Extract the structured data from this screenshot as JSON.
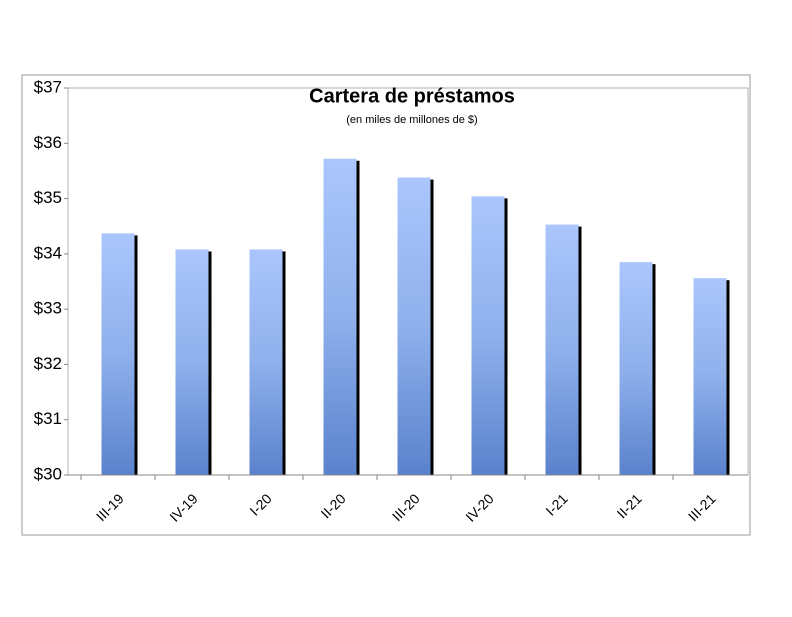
{
  "chart_data": {
    "type": "bar",
    "title": "Cartera de préstamos",
    "subtitle": "(en miles de millones  de $)",
    "categories": [
      "III-19",
      "IV-19",
      "I-20",
      "II-20",
      "III-20",
      "IV-20",
      "I-21",
      "II-21",
      "III-21"
    ],
    "values": [
      34.37,
      34.08,
      34.08,
      35.72,
      35.38,
      35.04,
      34.53,
      33.85,
      33.56
    ],
    "color": "#a8c4fa",
    "ylim": [
      30,
      37
    ],
    "yticks": [
      {
        "value": 30,
        "label": "$30"
      },
      {
        "value": 31,
        "label": "$31"
      },
      {
        "value": 32,
        "label": "$32"
      },
      {
        "value": 33,
        "label": "$33"
      },
      {
        "value": 34,
        "label": "$34"
      },
      {
        "value": 35,
        "label": "$35"
      },
      {
        "value": 36,
        "label": "$36"
      },
      {
        "value": 37,
        "label": "$37"
      }
    ]
  }
}
